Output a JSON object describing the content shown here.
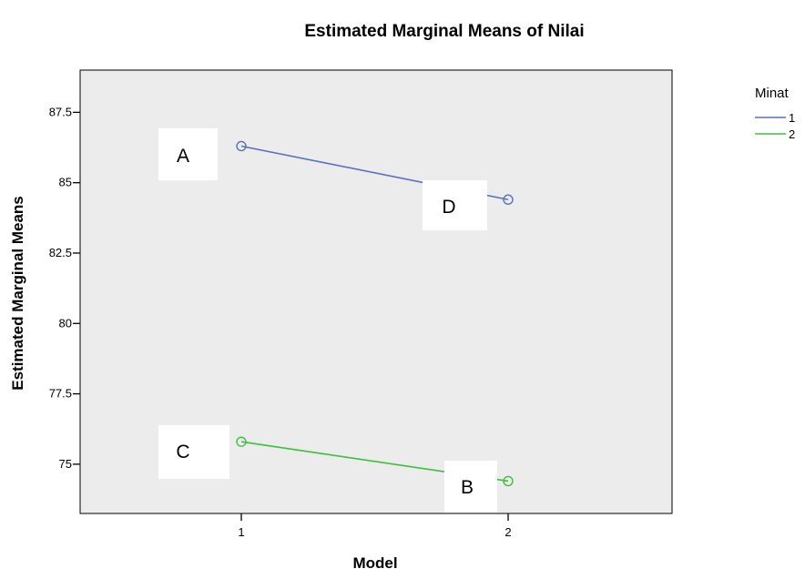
{
  "chart_data": {
    "type": "line",
    "title": "Estimated Marginal Means of Nilai",
    "xlabel": "Model",
    "ylabel": "Estimated Marginal Means",
    "categories": [
      "1",
      "2"
    ],
    "x_ticks": [
      "1",
      "2"
    ],
    "y_ticks": [
      "75",
      "77.5",
      "80",
      "82.5",
      "85",
      "87.5"
    ],
    "y_tick_values": [
      75,
      77.5,
      80,
      82.5,
      85,
      87.5
    ],
    "ylim": [
      73.25,
      89
    ],
    "grid": false,
    "legend": {
      "title": "Minat",
      "position": "top-right",
      "entries": [
        "1",
        "2"
      ]
    },
    "series": [
      {
        "name": "1",
        "color": "#5b6fbf",
        "values": [
          86.3,
          84.4
        ]
      },
      {
        "name": "2",
        "color": "#3dbf3d",
        "values": [
          75.8,
          74.4
        ]
      }
    ],
    "annotations": [
      "A",
      "D",
      "C",
      "B"
    ],
    "colors": {
      "plot_background": "#ececec",
      "frame": "#000000"
    }
  }
}
